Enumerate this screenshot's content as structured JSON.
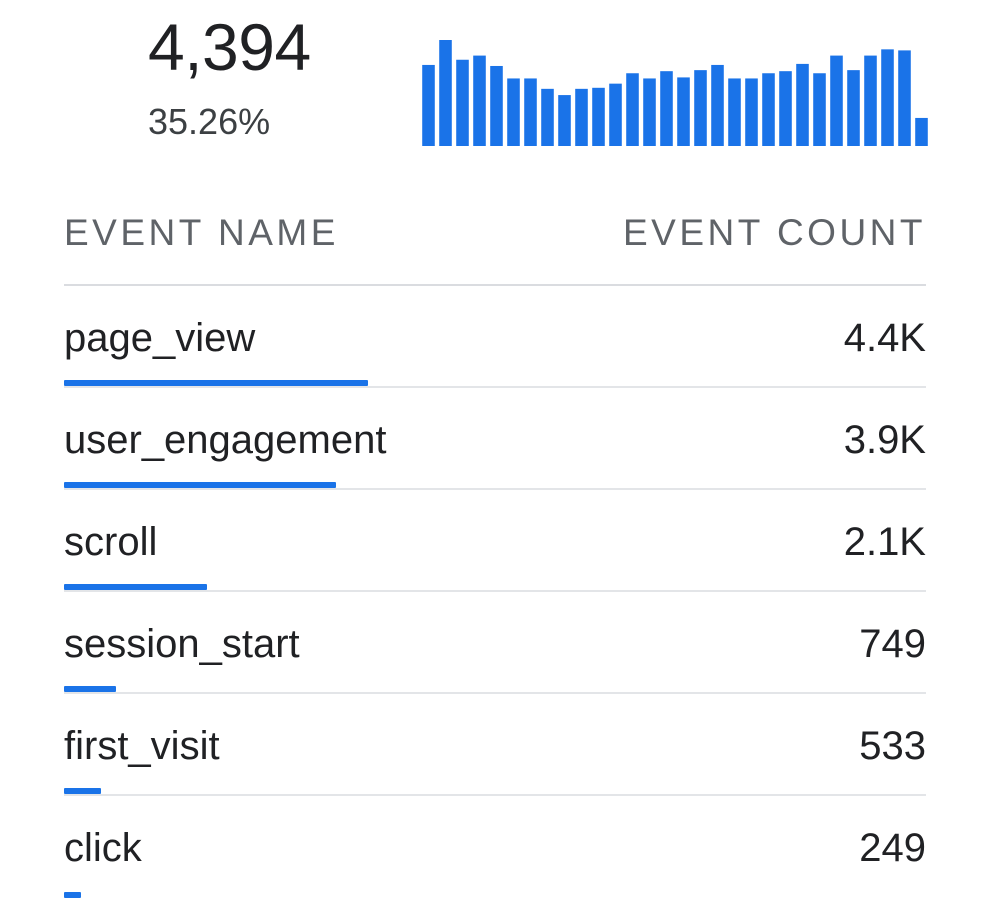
{
  "summary": {
    "value": "4,394",
    "percent": "35.26%"
  },
  "sparkline": {
    "color": "#1a73e8",
    "values": [
      78,
      102,
      83,
      87,
      77,
      65,
      65,
      55,
      49,
      55,
      56,
      60,
      70,
      65,
      72,
      66,
      73,
      78,
      65,
      65,
      70,
      72,
      79,
      70,
      87,
      73,
      87,
      93,
      92,
      27
    ]
  },
  "table": {
    "header_name": "EVENT NAME",
    "header_count": "EVENT COUNT",
    "accent_color": "#1a73e8",
    "rows": [
      {
        "name": "page_view",
        "count": "4.4K",
        "share": 0.353
      },
      {
        "name": "user_engagement",
        "count": "3.9K",
        "share": 0.316
      },
      {
        "name": "scroll",
        "count": "2.1K",
        "share": 0.166
      },
      {
        "name": "session_start",
        "count": "749",
        "share": 0.06
      },
      {
        "name": "first_visit",
        "count": "533",
        "share": 0.043
      },
      {
        "name": "click",
        "count": "249",
        "share": 0.02
      }
    ]
  }
}
